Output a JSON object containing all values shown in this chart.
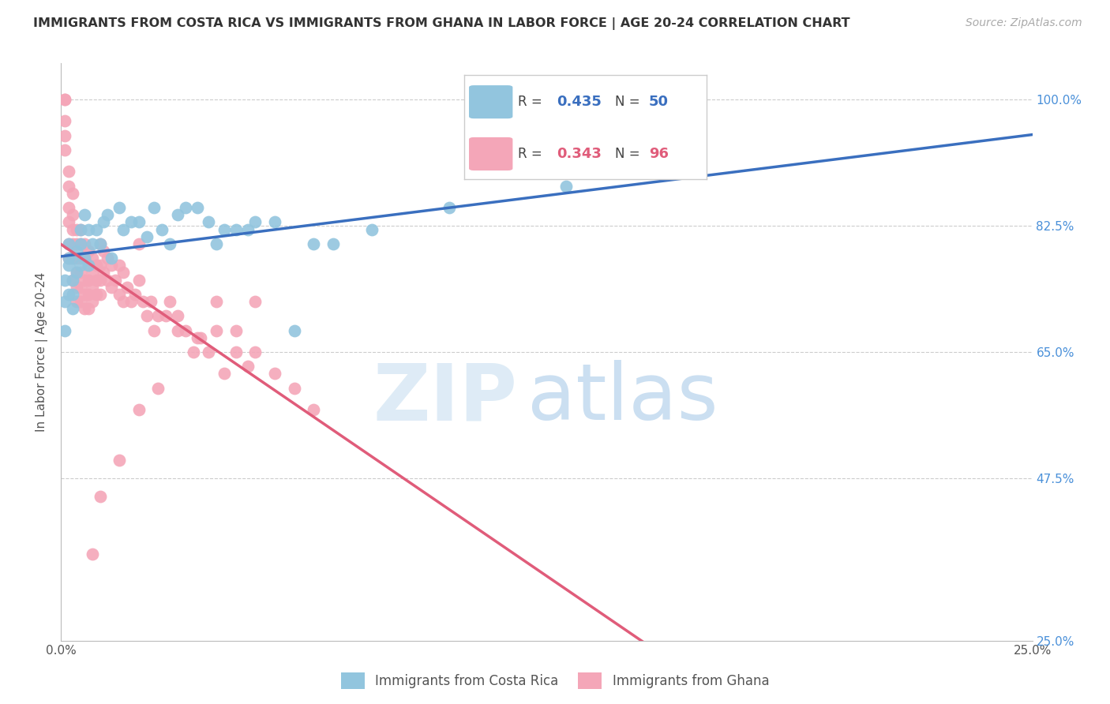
{
  "title": "IMMIGRANTS FROM COSTA RICA VS IMMIGRANTS FROM GHANA IN LABOR FORCE | AGE 20-24 CORRELATION CHART",
  "source_text": "Source: ZipAtlas.com",
  "ylabel": "In Labor Force | Age 20-24",
  "watermark_zip": "ZIP",
  "watermark_atlas": "atlas",
  "legend_blue_r": "0.435",
  "legend_blue_n": "50",
  "legend_pink_r": "0.343",
  "legend_pink_n": "96",
  "blue_color": "#92c5de",
  "pink_color": "#f4a6b8",
  "blue_line_color": "#3a6fbf",
  "pink_line_color": "#e05c7a",
  "right_axis_color": "#4a90d9",
  "title_color": "#333333",
  "background_color": "#ffffff",
  "xlim": [
    0.0,
    0.25
  ],
  "ylim": [
    0.25,
    1.05
  ],
  "blue_x": [
    0.001,
    0.001,
    0.001,
    0.002,
    0.002,
    0.002,
    0.002,
    0.003,
    0.003,
    0.003,
    0.003,
    0.004,
    0.004,
    0.005,
    0.005,
    0.005,
    0.006,
    0.006,
    0.007,
    0.007,
    0.008,
    0.009,
    0.01,
    0.011,
    0.012,
    0.013,
    0.015,
    0.016,
    0.018,
    0.02,
    0.022,
    0.024,
    0.026,
    0.028,
    0.03,
    0.032,
    0.035,
    0.038,
    0.04,
    0.042,
    0.045,
    0.048,
    0.05,
    0.055,
    0.06,
    0.065,
    0.07,
    0.08,
    0.1,
    0.13
  ],
  "blue_y": [
    0.72,
    0.75,
    0.68,
    0.8,
    0.77,
    0.73,
    0.78,
    0.75,
    0.73,
    0.71,
    0.78,
    0.76,
    0.79,
    0.82,
    0.77,
    0.8,
    0.78,
    0.84,
    0.82,
    0.77,
    0.8,
    0.82,
    0.8,
    0.83,
    0.84,
    0.78,
    0.85,
    0.82,
    0.83,
    0.83,
    0.81,
    0.85,
    0.82,
    0.8,
    0.84,
    0.85,
    0.85,
    0.83,
    0.8,
    0.82,
    0.82,
    0.82,
    0.83,
    0.83,
    0.68,
    0.8,
    0.8,
    0.82,
    0.85,
    0.88
  ],
  "pink_x": [
    0.001,
    0.001,
    0.001,
    0.001,
    0.001,
    0.002,
    0.002,
    0.002,
    0.002,
    0.002,
    0.002,
    0.003,
    0.003,
    0.003,
    0.003,
    0.003,
    0.003,
    0.004,
    0.004,
    0.004,
    0.004,
    0.004,
    0.004,
    0.005,
    0.005,
    0.005,
    0.005,
    0.005,
    0.005,
    0.006,
    0.006,
    0.006,
    0.006,
    0.006,
    0.007,
    0.007,
    0.007,
    0.007,
    0.007,
    0.008,
    0.008,
    0.008,
    0.008,
    0.009,
    0.009,
    0.009,
    0.01,
    0.01,
    0.01,
    0.01,
    0.011,
    0.011,
    0.012,
    0.012,
    0.013,
    0.013,
    0.014,
    0.015,
    0.015,
    0.016,
    0.016,
    0.017,
    0.018,
    0.019,
    0.02,
    0.021,
    0.022,
    0.023,
    0.024,
    0.025,
    0.027,
    0.028,
    0.03,
    0.032,
    0.034,
    0.036,
    0.038,
    0.04,
    0.042,
    0.045,
    0.048,
    0.05,
    0.055,
    0.06,
    0.065,
    0.03,
    0.035,
    0.04,
    0.045,
    0.05,
    0.02,
    0.025,
    0.015,
    0.01,
    0.008,
    0.02
  ],
  "pink_y": [
    1.0,
    1.0,
    0.97,
    0.95,
    0.93,
    0.9,
    0.88,
    0.85,
    0.83,
    0.8,
    0.78,
    0.87,
    0.84,
    0.82,
    0.8,
    0.78,
    0.75,
    0.82,
    0.8,
    0.78,
    0.76,
    0.74,
    0.72,
    0.82,
    0.8,
    0.78,
    0.76,
    0.74,
    0.72,
    0.8,
    0.78,
    0.75,
    0.73,
    0.71,
    0.79,
    0.77,
    0.75,
    0.73,
    0.71,
    0.78,
    0.76,
    0.74,
    0.72,
    0.77,
    0.75,
    0.73,
    0.8,
    0.77,
    0.75,
    0.73,
    0.79,
    0.76,
    0.78,
    0.75,
    0.77,
    0.74,
    0.75,
    0.77,
    0.73,
    0.76,
    0.72,
    0.74,
    0.72,
    0.73,
    0.75,
    0.72,
    0.7,
    0.72,
    0.68,
    0.7,
    0.7,
    0.72,
    0.7,
    0.68,
    0.65,
    0.67,
    0.65,
    0.68,
    0.62,
    0.65,
    0.63,
    0.65,
    0.62,
    0.6,
    0.57,
    0.68,
    0.67,
    0.72,
    0.68,
    0.72,
    0.57,
    0.6,
    0.5,
    0.45,
    0.37,
    0.8
  ]
}
